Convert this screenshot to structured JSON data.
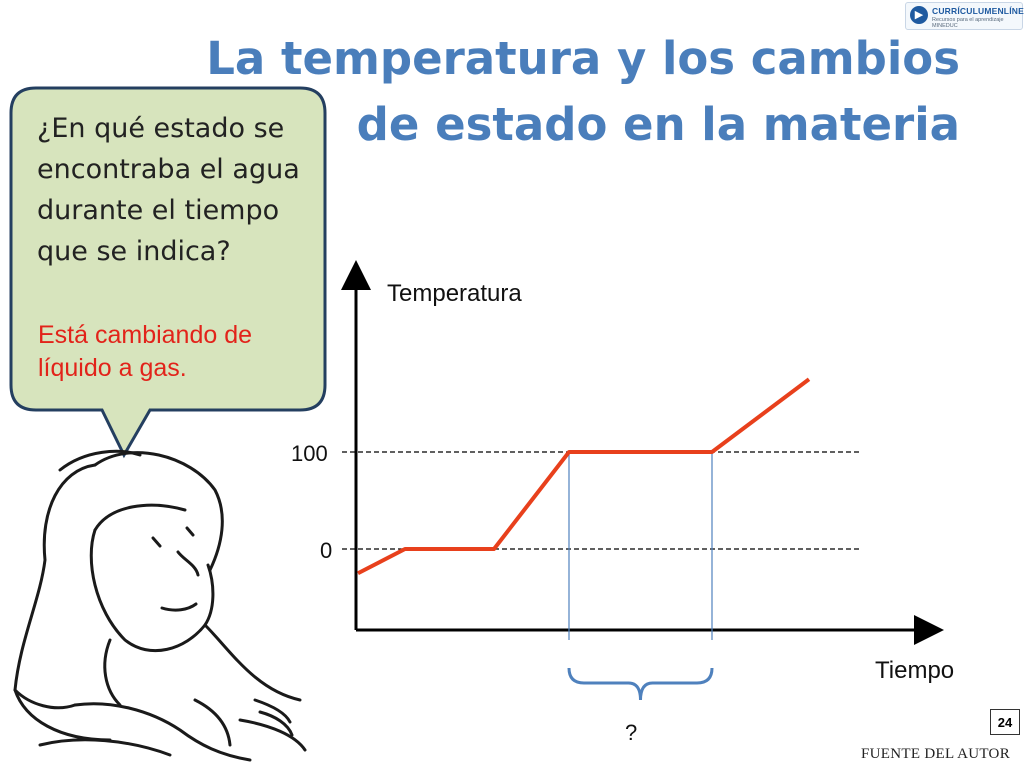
{
  "title": "La temperatura y los cambios de estado en la materia",
  "logo": {
    "name": "CURRÍCULUMENLÍNEA",
    "tagline": "Recursos para el aprendizaje MINEDUC",
    "icon": "play-arrow-icon"
  },
  "bubble": {
    "question": "¿En qué estado se encontraba el agua durante el tiempo que se indica?",
    "answer": "Está cambiando de líquido a gas."
  },
  "chart_data": {
    "type": "line",
    "ylabel": "Temperatura",
    "xlabel": "Tiempo",
    "y_ticks": [
      "100",
      "0"
    ],
    "series": [
      {
        "x": [
          0,
          1,
          2,
          3,
          4,
          5
        ],
        "y": [
          -25,
          0,
          0,
          100,
          100,
          175
        ]
      }
    ],
    "reference_lines": [
      0,
      100
    ],
    "bracket_label": "?",
    "colors": {
      "line": "#e8401c",
      "axis": "#000000",
      "guide": "#4f81bd"
    }
  },
  "footer": {
    "page_number": "24",
    "source": "FUENTE DEL AUTOR"
  }
}
